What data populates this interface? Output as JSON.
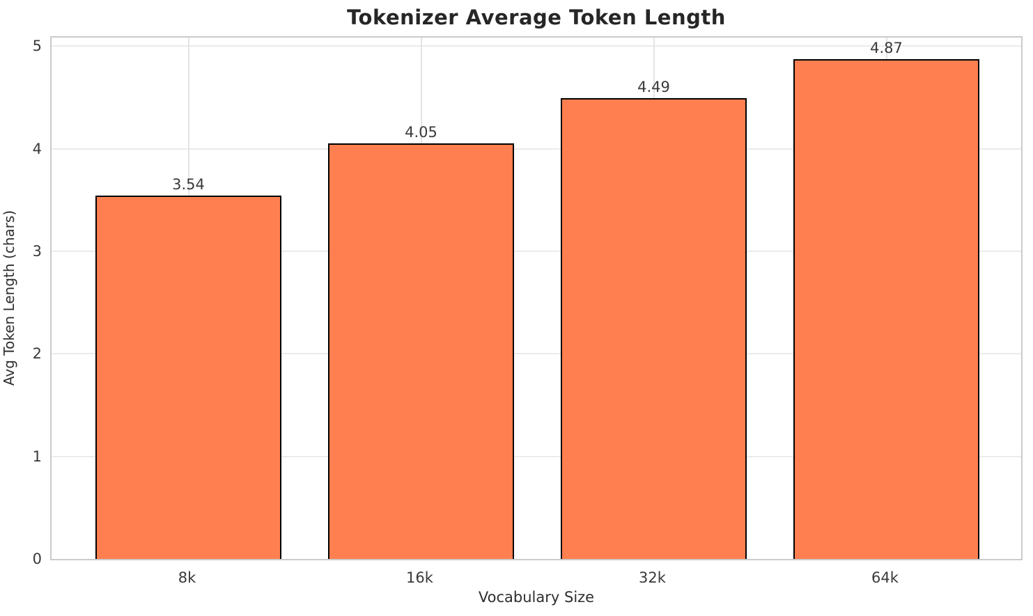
{
  "chart_data": {
    "type": "bar",
    "title": "Tokenizer Average Token Length",
    "xlabel": "Vocabulary Size",
    "ylabel": "Avg Token Length (chars)",
    "categories": [
      "8k",
      "16k",
      "32k",
      "64k"
    ],
    "values": [
      3.54,
      4.05,
      4.49,
      4.87
    ],
    "value_labels": [
      "3.54",
      "4.05",
      "4.49",
      "4.87"
    ],
    "yticks": [
      0,
      1,
      2,
      3,
      4,
      5
    ],
    "ylim": [
      0,
      5.11
    ],
    "grid": true,
    "legend": "none",
    "bar_color": "#FF7F50",
    "bar_edge_color": "#000000",
    "grid_color": "#ebebeb",
    "spine_color": "#cbcbcb",
    "text_color": "#262626"
  }
}
